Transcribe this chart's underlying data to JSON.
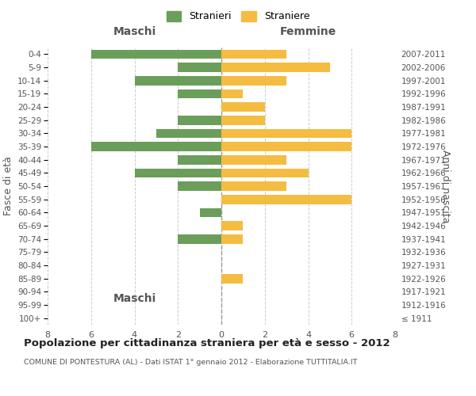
{
  "age_groups": [
    "100+",
    "95-99",
    "90-94",
    "85-89",
    "80-84",
    "75-79",
    "70-74",
    "65-69",
    "60-64",
    "55-59",
    "50-54",
    "45-49",
    "40-44",
    "35-39",
    "30-34",
    "25-29",
    "20-24",
    "15-19",
    "10-14",
    "5-9",
    "0-4"
  ],
  "birth_years": [
    "≤ 1911",
    "1912-1916",
    "1917-1921",
    "1922-1926",
    "1927-1931",
    "1932-1936",
    "1937-1941",
    "1942-1946",
    "1947-1951",
    "1952-1956",
    "1957-1961",
    "1962-1966",
    "1967-1971",
    "1972-1976",
    "1977-1981",
    "1982-1986",
    "1987-1991",
    "1992-1996",
    "1997-2001",
    "2002-2006",
    "2007-2011"
  ],
  "maschi": [
    0,
    0,
    0,
    0,
    0,
    0,
    2,
    0,
    1,
    0,
    2,
    4,
    2,
    6,
    3,
    2,
    0,
    2,
    4,
    2,
    6
  ],
  "femmine": [
    0,
    0,
    0,
    1,
    0,
    0,
    1,
    1,
    0,
    6,
    3,
    4,
    3,
    6,
    6,
    2,
    2,
    1,
    3,
    5,
    3
  ],
  "maschi_color": "#6a9e5a",
  "femmine_color": "#f5bc42",
  "title": "Popolazione per cittadinanza straniera per età e sesso - 2012",
  "subtitle": "COMUNE DI PONTESTURA (AL) - Dati ISTAT 1° gennaio 2012 - Elaborazione TUTTITALIA.IT",
  "ylabel_left": "Fasce di età",
  "ylabel_right": "Anni di nascita",
  "xlabel_left": "Maschi",
  "xlabel_right": "Femmine",
  "legend_maschi": "Stranieri",
  "legend_femmine": "Straniere",
  "xlim": 8,
  "bg_color": "#ffffff",
  "grid_color": "#cccccc",
  "bar_height": 0.7
}
